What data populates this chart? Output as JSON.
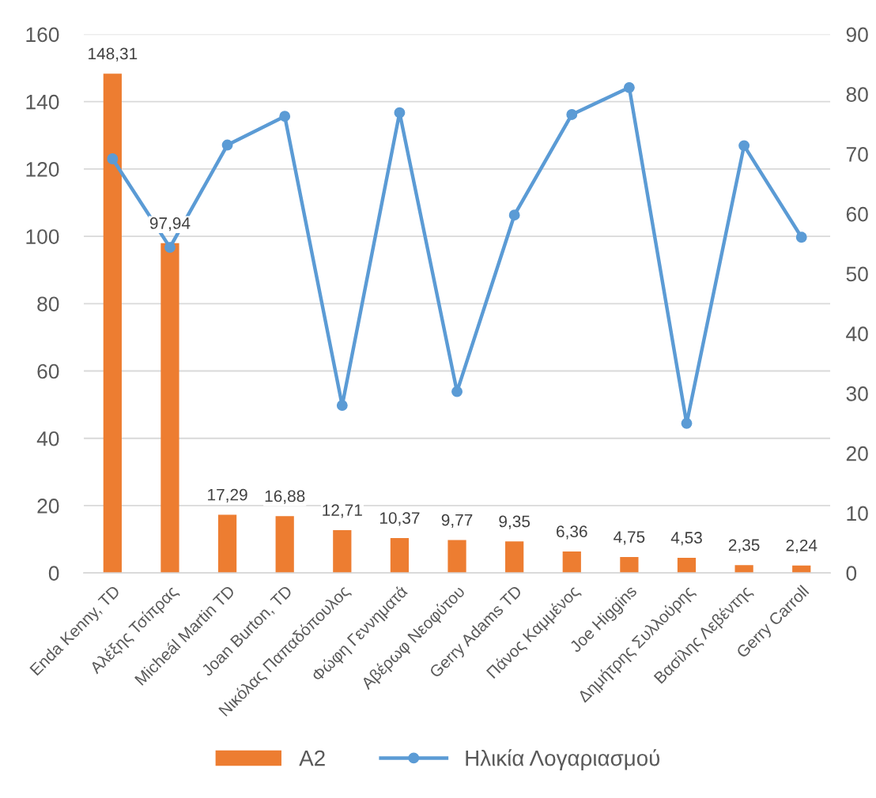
{
  "chart_data": {
    "type": "bar",
    "categories": [
      "Enda Kenny, TD",
      "Αλέξης Τσίπρας",
      "Micheál Martin TD",
      "Joan Burton, TD",
      "Νικόλας Παπαδόπουλος",
      "Φώφη Γεννηματά",
      "Αβέρωφ Νεοφύτου",
      "Gerry Adams TD",
      "Πάνος Καμμένος",
      "Joe Higgins",
      "Δημήτρης Συλλούρης",
      "Βασίλης Λεβέντης",
      "Gerry Carroll"
    ],
    "series": [
      {
        "name": "A2",
        "color": "#ed7d31",
        "values": [
          148.31,
          97.94,
          17.29,
          16.88,
          12.71,
          10.37,
          9.77,
          9.35,
          6.36,
          4.75,
          4.53,
          2.35,
          2.24
        ],
        "value_labels": [
          "148,31",
          "97,94",
          "17,29",
          "16,88",
          "12,71",
          "10,37",
          "9,77",
          "9,35",
          "6,36",
          "4,75",
          "4,53",
          "2,35",
          "2,24"
        ]
      },
      {
        "name": "Ηλικία Λογαριασμού",
        "type": "line",
        "axis": "y2",
        "color": "#5b9bd5",
        "values": [
          69.2,
          54.4,
          71.5,
          76.3,
          28.0,
          76.9,
          30.3,
          59.8,
          76.6,
          81.1,
          25.0,
          71.4,
          56.1
        ]
      }
    ],
    "ylim": [
      0,
      160
    ],
    "yticks": [
      0,
      20,
      40,
      60,
      80,
      100,
      120,
      140,
      160
    ],
    "y2lim": [
      0,
      90
    ],
    "y2ticks": [
      0,
      10,
      20,
      30,
      40,
      50,
      60,
      70,
      80,
      90
    ],
    "grid": "y",
    "legend": "bottom",
    "marker": "circle",
    "line_style": "solid"
  }
}
